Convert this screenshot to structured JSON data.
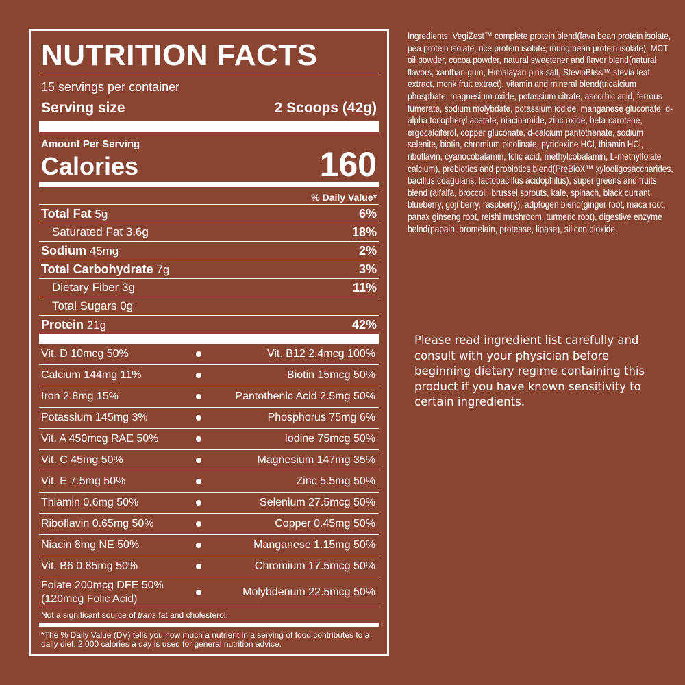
{
  "label": {
    "title": "NUTRITION FACTS",
    "servings": "15 servings per container",
    "serving_size_label": "Serving size",
    "serving_size": "2 Scoops (42g)",
    "amount_per_serving": "Amount Per Serving",
    "calories_label": "Calories",
    "calories": 160,
    "daily_value_header": "% Daily Value*",
    "nutrients": [
      {
        "name": "Total Fat",
        "amount": "5g",
        "dv": "6%"
      },
      {
        "name": "Saturated Fat",
        "amount": "3.6g",
        "dv": "18%"
      },
      {
        "name": "Sodium",
        "amount": "45mg",
        "dv": "2%"
      },
      {
        "name": "Total Carbohydrate",
        "amount": "7g",
        "dv": "3%"
      },
      {
        "name": "Dietary Fiber",
        "amount": "3g",
        "dv": "11%"
      },
      {
        "name": "Total Sugars",
        "amount": "0g"
      },
      {
        "name": "Protein",
        "amount": "21g",
        "dv": "42%"
      }
    ],
    "vitamins": [
      [
        "Vit. D 10mcg 50%",
        "Vit. B12 2.4mcg 100%"
      ],
      [
        "Calcium 144mg 11%",
        "Biotin 15mcg 50%"
      ],
      [
        "Iron 2.8mg 15%",
        "Pantothenic Acid 2.5mg 50%"
      ],
      [
        "Potassium 145mg 3%",
        "Phosphorus 75mg 6%"
      ],
      [
        "Vit. A 450mcg RAE 50%",
        "Iodine 75mcg 50%"
      ],
      [
        "Vit. C 45mg 50%",
        "Magnesium 147mg 35%"
      ],
      [
        "Vit. E 7.5mg 50%",
        "Zinc 5.5mg 50%"
      ],
      [
        "Thiamin 0.6mg 50%",
        "Selenium 27.5mcg 50%"
      ],
      [
        "Riboflavin 0.65mg 50%",
        "Copper 0.45mg 50%"
      ],
      [
        "Niacin 8mg NE 50%",
        "Manganese 1.15mg 50%"
      ],
      [
        "Vit. B6 0.85mg 50%",
        "Chromium 17.5mcg 50%"
      ],
      [
        "Folate 200mcg DFE 50%\n(120mcg Folic Acid)",
        "Molybdenum 22.5mcg 50%"
      ]
    ],
    "trans_note": [
      "Not a significant source of ",
      "trans",
      " fat and cholesterol."
    ],
    "footnote": "*The % Daily Value (DV) tells you how much a nutrient in a serving of food contributes to a daily diet. 2,000 calories a day is used for general nutrition advice."
  },
  "ingredients": "Ingredients: VegiZest™ complete protein blend(fava bean protein isolate, pea protein isolate, rice protein isolate, mung bean protein isolate), MCT oil powder, cocoa powder, natural sweetener and flavor blend(natural flavors, xanthan gum, Himalayan pink salt, StevioBliss™ stevia leaf extract, monk fruit extract), vitamin and mineral blend(tricalcium phosphate, magnesium oxide, potassium citrate, ascorbic acid, ferrous fumerate, sodium molybdate, potassium iodide, manganese gluconate, d-alpha tocopheryl acetate, niacinamide, zinc oxide, beta-carotene, ergocalciferol, copper gluconate, d-calcium pantothenate, sodium selenite, biotin, chromium picolinate, pyridoxine HCl, thiamin HCl, riboflavin, cyanocobalamin, folic acid, methylcobalamin, L-methylfolate calcium), prebiotics and probiotics blend(PreBioX™ xylooligosaccharides, bacillus coagulans, lactobacillus acidophilus), super greens and fruits blend (alfalfa, broccoli, brussel sprouts, kale, spinach, black currant, blueberry, goji berry, raspberry), adptogen blend(ginger root, maca root, panax ginseng root, reishi mushroom, turmeric root), digestive enzyme belnd(papain, bromelain, protease, lipase), silicon dioxide.",
  "warning": "Please read ingredient list carefully and consult with your physician before beginning dietary regime containing this product if you have known sensitivity to certain ingredients."
}
